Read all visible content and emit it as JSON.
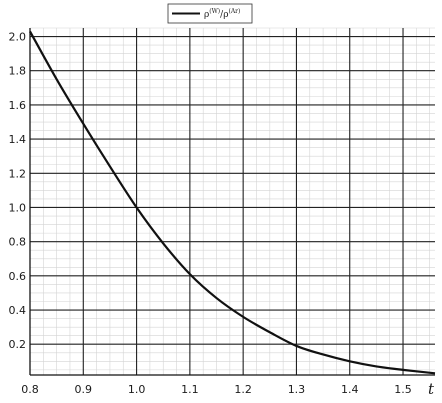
{
  "chart_data": {
    "type": "line",
    "xlabel": "t",
    "ylabel": "",
    "xlim": [
      0.8,
      1.56
    ],
    "ylim": [
      0.02,
      2.05
    ],
    "x_ticks": [
      0.8,
      0.9,
      1.0,
      1.1,
      1.2,
      1.3,
      1.4,
      1.5
    ],
    "x_tick_labels": [
      "0.8",
      "0.9",
      "1.0",
      "1.1",
      "1.2",
      "1.3",
      "1.4",
      "1.5"
    ],
    "y_ticks": [
      0.2,
      0.4,
      0.6,
      0.8,
      1.0,
      1.2,
      1.4,
      1.6,
      1.8,
      2.0
    ],
    "y_tick_labels": [
      "0.2",
      "0.4",
      "0.6",
      "0.8",
      "1.0",
      "1.2",
      "1.4",
      "1.6",
      "1.8",
      "2.0"
    ],
    "grid": true,
    "minor_grid": true,
    "legend_position": "top-center",
    "series": [
      {
        "name_parts": {
          "base1": "ρ",
          "sup1": "(W)",
          "sep": "/",
          "base2": "ρ",
          "sup2": "(Ar)"
        },
        "color": "#111111",
        "x": [
          0.8,
          0.85,
          0.9,
          0.95,
          1.0,
          1.05,
          1.1,
          1.15,
          1.2,
          1.25,
          1.3,
          1.35,
          1.4,
          1.45,
          1.5,
          1.56
        ],
        "y": [
          2.03,
          1.75,
          1.49,
          1.24,
          1.0,
          0.79,
          0.61,
          0.47,
          0.36,
          0.27,
          0.19,
          0.14,
          0.1,
          0.07,
          0.05,
          0.03
        ]
      }
    ]
  }
}
